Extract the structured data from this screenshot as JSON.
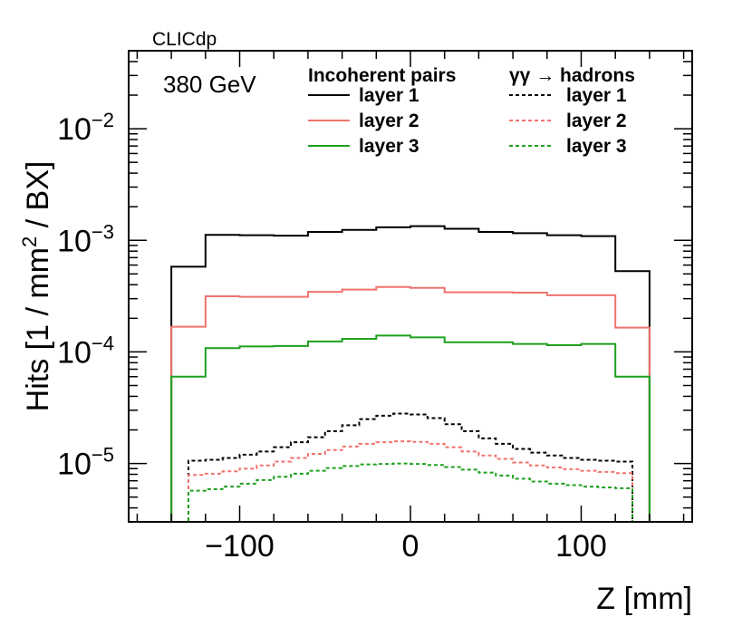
{
  "chart_data": {
    "type": "line",
    "style": "histogram-step",
    "experiment_label": "CLICdp",
    "energy_label": "380 GeV",
    "xlabel": "Z [mm]",
    "ylabel": {
      "prefix": "Hits [1 / mm",
      "sup": "2",
      "suffix": " / BX]"
    },
    "xlim": [
      -165,
      165
    ],
    "ylim": [
      3e-06,
      0.05
    ],
    "yscale": "log",
    "x_ticks": [
      {
        "value": -100,
        "label": "−100"
      },
      {
        "value": 0,
        "label": "0"
      },
      {
        "value": 100,
        "label": "100"
      }
    ],
    "y_ticks": [
      {
        "value": 1e-05,
        "base": "10",
        "exp": "−5"
      },
      {
        "value": 0.0001,
        "base": "10",
        "exp": "−4"
      },
      {
        "value": 0.001,
        "base": "10",
        "exp": "−3"
      },
      {
        "value": 0.01,
        "base": "10",
        "exp": "−2"
      }
    ],
    "legend": {
      "group_titles": [
        "Incoherent pairs",
        "γγ  → hadrons"
      ],
      "placement": "top"
    },
    "series": [
      {
        "name": "layer 1",
        "group": "Incoherent pairs",
        "color": "#000000",
        "dashed": false,
        "edges": [
          -140,
          -120,
          -100,
          -80,
          -60,
          -40,
          -20,
          0,
          20,
          40,
          60,
          80,
          100,
          120,
          140
        ],
        "values": [
          0.00058,
          0.00112,
          0.00111,
          0.0011,
          0.00119,
          0.00124,
          0.00131,
          0.00134,
          0.00127,
          0.00119,
          0.00116,
          0.00111,
          0.00109,
          0.00053
        ]
      },
      {
        "name": "layer 2",
        "group": "Incoherent pairs",
        "color": "#f0736e",
        "dashed": false,
        "edges": [
          -140,
          -120,
          -100,
          -80,
          -60,
          -40,
          -20,
          0,
          20,
          40,
          60,
          80,
          100,
          120,
          140
        ],
        "values": [
          0.000168,
          0.000315,
          0.000312,
          0.000312,
          0.000345,
          0.000362,
          0.000382,
          0.000375,
          0.000342,
          0.000342,
          0.00034,
          0.000322,
          0.000322,
          0.000165
        ]
      },
      {
        "name": "layer 3",
        "group": "Incoherent pairs",
        "color": "#1fa01f",
        "dashed": false,
        "edges": [
          -140,
          -120,
          -100,
          -80,
          -60,
          -40,
          -20,
          0,
          20,
          40,
          60,
          80,
          100,
          120,
          140
        ],
        "values": [
          6e-05,
          0.000108,
          0.000112,
          0.000113,
          0.000124,
          0.000131,
          0.00014,
          0.000135,
          0.000122,
          0.000122,
          0.000118,
          0.000115,
          0.000118,
          6e-05
        ]
      },
      {
        "name": "layer 1",
        "group": "γγ  → hadrons",
        "color": "#000000",
        "dashed": true,
        "edges": [
          -130,
          -120,
          -110,
          -100,
          -90,
          -80,
          -70,
          -60,
          -50,
          -40,
          -30,
          -20,
          -10,
          0,
          10,
          20,
          30,
          40,
          50,
          60,
          70,
          80,
          90,
          100,
          110,
          120,
          130
        ],
        "values": [
          1.06e-05,
          1.08e-05,
          1.12e-05,
          1.2e-05,
          1.28e-05,
          1.4e-05,
          1.55e-05,
          1.72e-05,
          1.95e-05,
          2.2e-05,
          2.5e-05,
          2.68e-05,
          2.8e-05,
          2.75e-05,
          2.55e-05,
          2.25e-05,
          1.95e-05,
          1.68e-05,
          1.5e-05,
          1.35e-05,
          1.25e-05,
          1.18e-05,
          1.12e-05,
          1.08e-05,
          1.06e-05,
          1.04e-05
        ]
      },
      {
        "name": "layer 2",
        "group": "γγ  → hadrons",
        "color": "#f0736e",
        "dashed": true,
        "edges": [
          -130,
          -120,
          -110,
          -100,
          -90,
          -80,
          -70,
          -60,
          -50,
          -40,
          -30,
          -20,
          -10,
          0,
          10,
          20,
          30,
          40,
          50,
          60,
          70,
          80,
          90,
          100,
          110,
          120,
          130
        ],
        "values": [
          7.9e-06,
          8.1e-06,
          8.5e-06,
          9e-06,
          9.6e-06,
          1.04e-05,
          1.12e-05,
          1.22e-05,
          1.32e-05,
          1.42e-05,
          1.5e-05,
          1.55e-05,
          1.58e-05,
          1.56e-05,
          1.5e-05,
          1.4e-05,
          1.28e-05,
          1.18e-05,
          1.1e-05,
          1.02e-05,
          9.6e-06,
          9.2e-06,
          8.9e-06,
          8.6e-06,
          8.4e-06,
          8.2e-06
        ]
      },
      {
        "name": "layer 3",
        "group": "γγ  → hadrons",
        "color": "#1fa01f",
        "dashed": true,
        "edges": [
          -130,
          -120,
          -110,
          -100,
          -90,
          -80,
          -70,
          -60,
          -50,
          -40,
          -30,
          -20,
          -10,
          0,
          10,
          20,
          30,
          40,
          50,
          60,
          70,
          80,
          90,
          100,
          110,
          120,
          130
        ],
        "values": [
          5.7e-06,
          5.9e-06,
          6.2e-06,
          6.6e-06,
          7.1e-06,
          7.6e-06,
          8.1e-06,
          8.6e-06,
          9.1e-06,
          9.5e-06,
          9.8e-06,
          9.9e-06,
          1e-05,
          9.9e-06,
          9.7e-06,
          9.3e-06,
          8.8e-06,
          8.3e-06,
          7.8e-06,
          7.3e-06,
          6.9e-06,
          6.6e-06,
          6.4e-06,
          6.2e-06,
          6.1e-06,
          6e-06
        ]
      }
    ]
  }
}
